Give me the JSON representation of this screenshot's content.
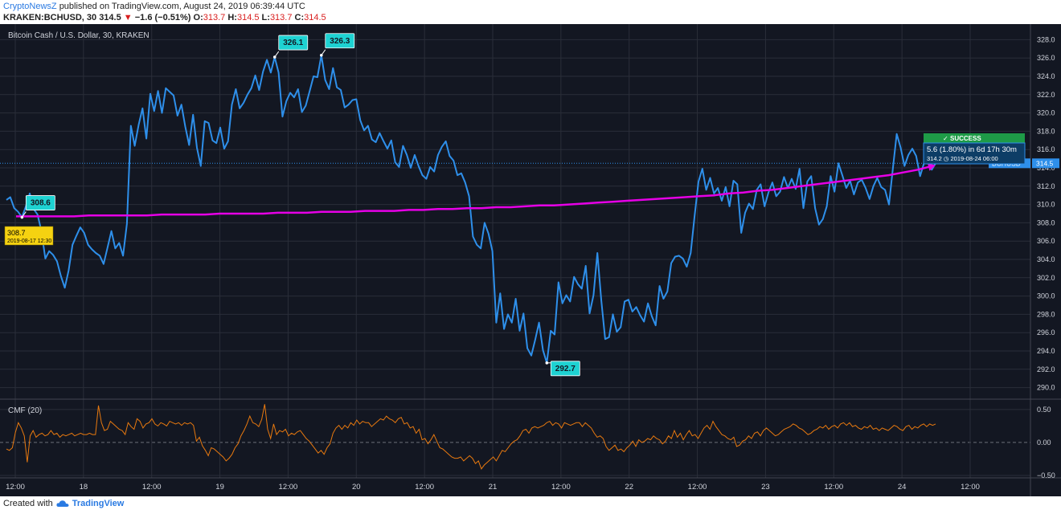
{
  "header": {
    "brand": "CryptoNewsZ",
    "published_text": "published on TradingView.com, August 24, 2019 06:39:44 UTC",
    "symbol_line": "KRAKEN:BCHUSD, 30",
    "last": "314.5",
    "change": "−1.6 (−0.51%)",
    "o_label": "O:",
    "o_value": "313.7",
    "h_label": "H:",
    "h_value": "314.5",
    "l_label": "L:",
    "l_value": "313.7",
    "c_label": "C:",
    "c_value": "314.5"
  },
  "chart_data": [
    {
      "type": "line",
      "title": "Bitcoin Cash / U.S. Dollar, 30, KRAKEN",
      "ylim": [
        289,
        329
      ],
      "y_ticks": [
        "290.0",
        "292.0",
        "294.0",
        "296.0",
        "298.0",
        "300.0",
        "302.0",
        "304.0",
        "306.0",
        "308.0",
        "310.0",
        "312.0",
        "314.0",
        "316.0",
        "318.0",
        "320.0",
        "322.0",
        "324.0",
        "326.0",
        "328.0"
      ],
      "grid": true,
      "last_price_label": "BCHUSD",
      "last_price_value": "314.5",
      "series": [
        {
          "color": "#2e8fea",
          "values": [
            310.5,
            310.8,
            309.6,
            309.2,
            308.6,
            309.8,
            311.2,
            309.5,
            308.9,
            307.1,
            304.1,
            304.9,
            304.5,
            303.8,
            302.2,
            300.9,
            302.8,
            305.6,
            306.6,
            307.5,
            306.9,
            305.6,
            305.1,
            304.7,
            304.4,
            303.5,
            305.3,
            307.1,
            305.2,
            305.8,
            304.4,
            307.9,
            318.6,
            316.4,
            318.7,
            320.5,
            317.2,
            322.1,
            320.2,
            322.4,
            320.0,
            322.7,
            322.3,
            321.9,
            319.7,
            320.9,
            318.5,
            316.5,
            319.8,
            316.2,
            314.2,
            319.1,
            318.9,
            317.0,
            316.7,
            318.4,
            316.1,
            316.9,
            320.9,
            322.6,
            320.5,
            321.1,
            322.0,
            322.7,
            324.1,
            322.5,
            324.5,
            325.8,
            324.4,
            326.1,
            324.4,
            319.6,
            321.3,
            322.2,
            321.7,
            322.6,
            320.1,
            320.8,
            322.4,
            324.0,
            323.9,
            326.3,
            323.6,
            322.6,
            324.9,
            322.8,
            322.5,
            320.6,
            320.9,
            321.4,
            321.5,
            319.2,
            318.1,
            318.6,
            317.1,
            316.8,
            317.8,
            316.9,
            316.1,
            317.0,
            314.6,
            314.1,
            316.4,
            315.4,
            314.0,
            315.4,
            314.2,
            313.2,
            312.8,
            314.1,
            313.6,
            315.4,
            316.3,
            316.9,
            315.3,
            314.8,
            313.2,
            313.4,
            312.4,
            310.9,
            306.5,
            305.6,
            305.2,
            308.0,
            306.8,
            304.9,
            297.1,
            300.3,
            296.4,
            298.0,
            297.1,
            299.7,
            296.2,
            298.1,
            294.3,
            293.5,
            295.2,
            297.1,
            294.1,
            292.7,
            296.2,
            295.8,
            301.5,
            299.2,
            300.1,
            299.4,
            302.1,
            301.3,
            300.8,
            303.3,
            298.1,
            300.1,
            304.7,
            299.6,
            295.3,
            295.5,
            298.0,
            296.1,
            296.6,
            299.4,
            299.6,
            298.3,
            298.8,
            297.9,
            297.2,
            299.2,
            297.8,
            296.8,
            301.1,
            299.7,
            300.5,
            303.6,
            304.3,
            304.4,
            304.1,
            303.2,
            304.7,
            308.7,
            312.5,
            313.9,
            311.6,
            312.9,
            311.2,
            311.8,
            310.4,
            311.9,
            309.8,
            312.6,
            312.2,
            306.9,
            309.1,
            310.1,
            309.5,
            311.6,
            312.2,
            309.8,
            311.3,
            312.4,
            310.9,
            311.4,
            313.0,
            311.8,
            312.8,
            311.7,
            313.9,
            309.6,
            312.5,
            313.1,
            309.6,
            307.8,
            308.4,
            309.8,
            313.1,
            311.4,
            314.5,
            313.2,
            311.8,
            312.6,
            311.1,
            312.4,
            312.7,
            311.8,
            310.6,
            312.0,
            312.9,
            311.9,
            311.6,
            310.0,
            313.9,
            317.7,
            316.2,
            314.2,
            315.4,
            316.1,
            315.3,
            313.1,
            314.5,
            314.6,
            313.8,
            314.5
          ]
        },
        {
          "color": "#e600e6",
          "values": [
            308.7,
            308.7,
            308.7,
            308.7,
            308.7,
            308.8,
            308.8,
            308.8,
            308.8,
            308.8,
            308.9,
            308.9,
            308.9,
            308.9,
            309.0,
            309.0,
            309.0,
            309.0,
            309.1,
            309.1,
            309.1,
            309.2,
            309.2,
            309.2,
            309.3,
            309.3,
            309.3,
            309.4,
            309.4,
            309.5,
            309.5,
            309.6,
            309.6,
            309.7,
            309.7,
            309.8,
            309.9,
            309.9,
            310.0,
            310.1,
            310.2,
            310.3,
            310.4,
            310.5,
            310.6,
            310.7,
            310.8,
            310.9,
            311.0,
            311.2,
            311.3,
            311.5,
            311.6,
            311.8,
            312.0,
            312.2,
            312.4,
            312.6,
            312.8,
            313.0,
            313.2,
            313.5,
            313.8,
            314.2
          ]
        }
      ],
      "annotations": [
        {
          "text": "308.6",
          "value": 308.6,
          "bar": 4
        },
        {
          "text": "326.1",
          "value": 326.1,
          "bar": 69
        },
        {
          "text": "326.3",
          "value": 326.3,
          "bar": 81
        },
        {
          "text": "292.7",
          "value": 292.7,
          "bar": 139
        }
      ],
      "start_box": {
        "price": "308.7",
        "date": "2019-08-17 12:30"
      },
      "result_box": {
        "status": "SUCCESS",
        "line1": "5.6 (1.80%) in 6d 17h 30m",
        "line2": "314.2  ◷ 2019-08-24  06:00"
      }
    },
    {
      "type": "line",
      "title": "CMF (20)",
      "ylim": [
        -0.5,
        0.62
      ],
      "y_ticks": [
        "0.50",
        "0.00",
        "−0.50"
      ],
      "series": [
        {
          "color": "#e8790f",
          "values": [
            -0.1,
            -0.12,
            -0.08,
            0.15,
            0.3,
            0.22,
            0.1,
            -0.3,
            0.1,
            0.18,
            0.08,
            0.12,
            0.14,
            0.1,
            0.12,
            0.18,
            0.12,
            0.14,
            0.08,
            0.12,
            0.1,
            0.12,
            0.14,
            0.1,
            0.12,
            0.14,
            0.12,
            0.12,
            0.14,
            0.12,
            0.12,
            0.56,
            0.3,
            0.18,
            0.2,
            0.32,
            0.28,
            0.24,
            0.2,
            0.18,
            0.12,
            0.3,
            0.24,
            0.2,
            0.36,
            0.32,
            0.22,
            0.28,
            0.3,
            0.36,
            0.28,
            0.25,
            0.3,
            0.28,
            0.25,
            0.32,
            0.3,
            0.28,
            0.3,
            0.26,
            0.3,
            0.28,
            0.3,
            0.26,
            0.02,
            0.08,
            -0.05,
            -0.12,
            -0.2,
            -0.08,
            -0.1,
            -0.14,
            -0.18,
            -0.22,
            -0.28,
            -0.24,
            -0.18,
            -0.08,
            -0.02,
            0.1,
            0.18,
            0.28,
            0.4,
            0.3,
            0.28,
            0.24,
            0.35,
            0.58,
            0.2,
            0.06,
            0.28,
            0.12,
            0.18,
            0.16,
            0.2,
            0.1,
            0.14,
            0.12,
            0.16,
            0.18,
            0.12,
            0.06,
            0.02,
            -0.04,
            -0.1,
            -0.16,
            -0.12,
            -0.18,
            -0.08,
            -0.02,
            0.14,
            0.22,
            0.26,
            0.2,
            0.26,
            0.22,
            0.3,
            0.26,
            0.34,
            0.28,
            0.32,
            0.3,
            0.3,
            0.24,
            0.28,
            0.32,
            0.36,
            0.34,
            0.4,
            0.36,
            0.34,
            0.3,
            0.36,
            0.38,
            0.28,
            0.3,
            0.22,
            0.24,
            0.14,
            0.2,
            0.04,
            0.06,
            -0.02,
            0.04,
            0.12,
            0.02,
            -0.08,
            -0.1,
            -0.14,
            -0.18,
            -0.22,
            -0.24,
            -0.24,
            -0.22,
            -0.28,
            -0.24,
            -0.2,
            -0.24,
            -0.32,
            -0.28,
            -0.4,
            -0.34,
            -0.3,
            -0.26,
            -0.22,
            -0.28,
            -0.2,
            -0.12,
            -0.14,
            -0.08,
            -0.02,
            0.02,
            0.04,
            0.1,
            0.18,
            0.2,
            0.14,
            0.22,
            0.24,
            0.22,
            0.24,
            0.26,
            0.3,
            0.32,
            0.26,
            0.3,
            0.28,
            0.22,
            0.3,
            0.28,
            0.26,
            0.28,
            0.3,
            0.3,
            0.24,
            0.3,
            0.26,
            0.22,
            0.14,
            0.08,
            0.1,
            0.06,
            -0.06,
            -0.12,
            -0.08,
            -0.04,
            -0.12,
            -0.1,
            -0.14,
            -0.08,
            -0.04,
            0.02,
            -0.06,
            0.04,
            0.0,
            0.02,
            0.06,
            0.04,
            0.1,
            0.06,
            0.04,
            -0.02,
            0.02,
            0.1,
            0.06,
            0.18,
            0.08,
            0.14,
            0.04,
            0.12,
            0.18,
            0.1,
            0.12,
            0.06,
            0.14,
            0.22,
            0.26,
            0.2,
            0.32,
            0.24,
            0.18,
            0.12,
            0.1,
            0.06,
            0.04,
            0.08,
            -0.06,
            -0.04,
            0.02,
            0.04,
            0.1,
            0.06,
            0.14,
            0.16,
            0.1,
            0.18,
            0.22,
            0.18,
            0.14,
            0.1,
            0.12,
            0.16,
            0.2,
            0.22,
            0.24,
            0.28,
            0.26,
            0.22,
            0.2,
            0.16,
            0.12,
            0.14,
            0.18,
            0.2,
            0.24,
            0.22,
            0.26,
            0.2,
            0.24,
            0.26,
            0.22,
            0.28,
            0.3,
            0.26,
            0.3,
            0.24,
            0.26,
            0.22,
            0.2,
            0.24,
            0.22,
            0.26,
            0.2,
            0.22,
            0.18,
            0.22,
            0.2,
            0.18,
            0.22,
            0.26,
            0.24,
            0.2,
            0.18,
            0.24,
            0.26,
            0.2,
            0.24,
            0.22,
            0.26,
            0.28,
            0.24,
            0.28,
            0.26,
            0.28
          ]
        }
      ]
    }
  ],
  "x_ticks": [
    "12:00",
    "18",
    "12:00",
    "19",
    "12:00",
    "20",
    "12:00",
    "21",
    "12:00",
    "22",
    "12:00",
    "23",
    "12:00",
    "24",
    "12:00"
  ],
  "footer": {
    "created_with": "Created with",
    "brand": "TradingView"
  }
}
